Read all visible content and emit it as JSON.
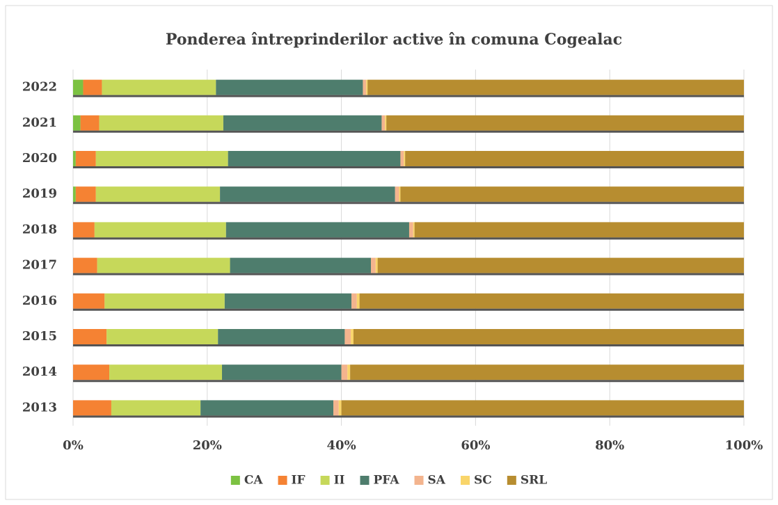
{
  "chart_data": {
    "type": "stacked-barh",
    "title": "Ponderea întreprinderilor active în comuna Cogealac",
    "categories": [
      "2013",
      "2014",
      "2015",
      "2016",
      "2017",
      "2018",
      "2019",
      "2020",
      "2021",
      "2022"
    ],
    "series": [
      {
        "name": "CA",
        "color": "#7cc242",
        "values": [
          0,
          0,
          0,
          0,
          0,
          0,
          0.4,
          0.4,
          1.1,
          1.5
        ]
      },
      {
        "name": "IF",
        "color": "#f58233",
        "values": [
          5.7,
          5.4,
          5.0,
          4.7,
          3.6,
          3.2,
          3.0,
          3.0,
          2.8,
          2.8
        ]
      },
      {
        "name": "II",
        "color": "#c6d85a",
        "values": [
          13.3,
          16.8,
          16.6,
          17.9,
          19.8,
          19.6,
          18.5,
          19.7,
          18.5,
          17.0
        ]
      },
      {
        "name": "PFA",
        "color": "#4e7d6d",
        "values": [
          19.8,
          17.8,
          18.9,
          18.9,
          21.0,
          27.3,
          26.1,
          25.7,
          23.6,
          21.9
        ]
      },
      {
        "name": "SA",
        "color": "#f3b48e",
        "values": [
          0.8,
          0.9,
          0.9,
          0.8,
          0.7,
          0.6,
          0.6,
          0.5,
          0.5,
          0.5
        ]
      },
      {
        "name": "SC",
        "color": "#f9d56a",
        "values": [
          0.4,
          0.4,
          0.4,
          0.4,
          0.3,
          0.2,
          0.2,
          0.2,
          0.2,
          0.2
        ]
      },
      {
        "name": "SRL",
        "color": "#b78d30",
        "values": [
          60.0,
          58.7,
          58.2,
          57.3,
          54.6,
          49.1,
          51.2,
          50.5,
          53.3,
          56.1
        ]
      }
    ],
    "xlim": [
      0,
      100
    ],
    "xticks": [
      {
        "value": 0,
        "label": "0%"
      },
      {
        "value": 20,
        "label": "20%"
      },
      {
        "value": 40,
        "label": "40%"
      },
      {
        "value": 60,
        "label": "60%"
      },
      {
        "value": 80,
        "label": "80%"
      },
      {
        "value": 100,
        "label": "100%"
      }
    ],
    "grid": true,
    "legend": "bottom"
  }
}
